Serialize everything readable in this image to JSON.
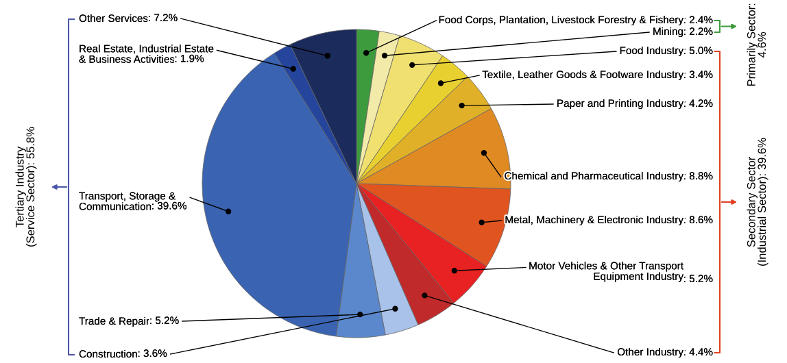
{
  "chart_data": {
    "type": "pie",
    "categories": [
      "Food Corps, Plantation, Livestock Forestry & Fishery",
      "Mining",
      "Food Industry",
      "Textile, Leather Goods & Footware Industry",
      "Paper and Printing Industry",
      "Chemical and Pharmaceutical Industry",
      "Metal, Machinery & Electronic Industry",
      "Motor Vehicles & Other Transport\nEquipment Industry",
      "Other Industry",
      "Construction",
      "Trade & Repair",
      "Transport, Storage &\nCommunication",
      "Real Estate, Industrial Estate\n& Business Activities",
      "Other Services"
    ],
    "values": [
      2.4,
      2.2,
      5.0,
      3.4,
      4.2,
      8.8,
      8.6,
      5.2,
      4.4,
      3.6,
      5.2,
      39.6,
      1.9,
      7.2
    ],
    "data_labels": true,
    "value_labels": [
      ": 2.4%",
      ": 2.2%",
      ": 5.0%",
      ": 3.4%",
      ": 4.2%",
      ": 8.8%",
      ": 8.6%",
      ": 5.2%",
      ": 4.4%",
      ": 3.6%",
      ": 5.2%",
      ": 39.6%",
      ": 1.9%",
      ": 7.2%"
    ],
    "colors": [
      "#3d9b3d",
      "#f2eaa8",
      "#f0e070",
      "#e8d030",
      "#e0b028",
      "#e08a24",
      "#e05420",
      "#e82222",
      "#c02a2a",
      "#a8c2ea",
      "#5b88cc",
      "#3a64b2",
      "#25459c",
      "#1b2b5c"
    ],
    "annotations": [
      "Primarily Sector:\n4.6%",
      "Secondary Sector\n(Industrial Sector): 39.6%",
      "Tertiary Industry\n(Service Sector): 55.8%"
    ]
  }
}
